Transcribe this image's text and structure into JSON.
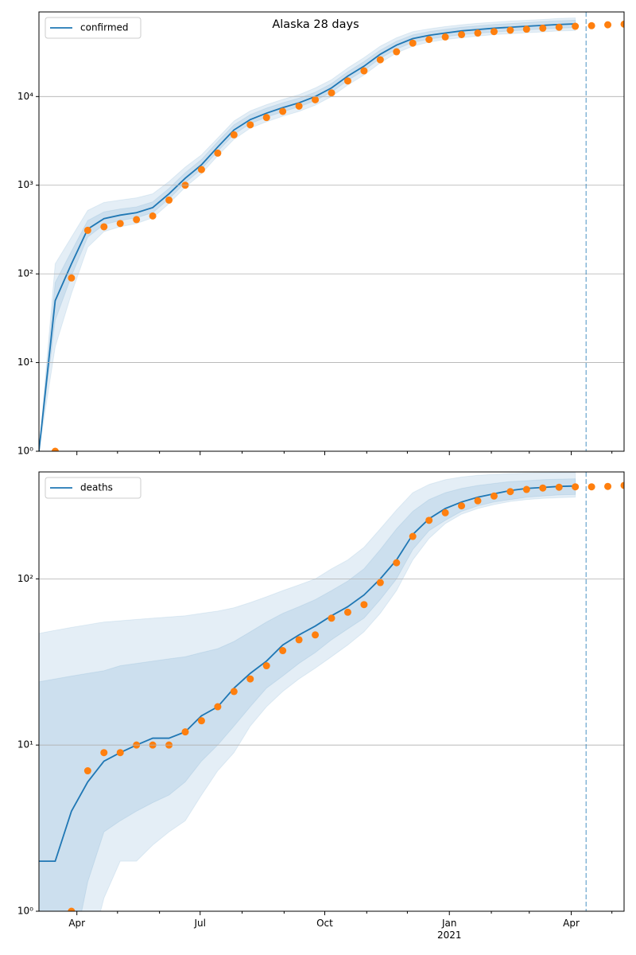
{
  "chart_data": [
    {
      "type": "line",
      "title": "Alaska 28 days",
      "x": [
        0,
        12,
        24,
        36,
        48,
        60,
        72,
        84,
        96,
        108,
        120,
        132,
        144,
        156,
        168,
        180,
        192,
        204,
        216,
        228,
        240,
        252,
        264,
        276,
        288,
        300,
        312,
        324,
        336,
        348,
        360,
        372,
        384,
        396,
        408,
        420,
        432
      ],
      "xlim": [
        0,
        432
      ],
      "xticks": [
        28,
        119,
        211,
        303,
        393
      ],
      "xminorticks": [
        58,
        89,
        150,
        181,
        242,
        272,
        334,
        362,
        423
      ],
      "ylim": [
        1,
        90000
      ],
      "log_y": true,
      "grid": "y",
      "legend": "upper left",
      "yticks": [
        {
          "value": 1,
          "label": "10⁰"
        },
        {
          "value": 10,
          "label": "10¹"
        },
        {
          "value": 100,
          "label": "10²"
        },
        {
          "value": 1000,
          "label": "10³"
        },
        {
          "value": 10000,
          "label": "10⁴"
        }
      ],
      "band_color": "#1f77b4",
      "bands": [
        {
          "lower": [
            1,
            15,
            60,
            200,
            300,
            340,
            370,
            430,
            620,
            950,
            1350,
            2150,
            3300,
            4400,
            5200,
            6000,
            6800,
            8000,
            10000,
            13500,
            17500,
            24000,
            31000,
            37000,
            41000,
            44000,
            46000,
            48000,
            50000,
            51000,
            52500,
            53500,
            55000,
            55500,
            null,
            null,
            null
          ],
          "upper": [
            1,
            130,
            260,
            520,
            640,
            680,
            720,
            800,
            1100,
            1600,
            2200,
            3400,
            5300,
            6900,
            8100,
            9300,
            10500,
            12500,
            15500,
            21000,
            27500,
            37000,
            46000,
            54000,
            58000,
            61500,
            64500,
            67000,
            69000,
            71000,
            72500,
            74000,
            76000,
            77000,
            null,
            null,
            null
          ]
        },
        {
          "lower": [
            1,
            30,
            95,
            260,
            360,
            400,
            430,
            490,
            700,
            1070,
            1520,
            2420,
            3750,
            4950,
            5850,
            6750,
            7650,
            9000,
            11200,
            15200,
            19700,
            27000,
            34300,
            40800,
            44500,
            47300,
            50000,
            51800,
            53600,
            55000,
            56400,
            57800,
            59100,
            60000,
            null,
            null,
            null
          ],
          "upper": [
            1,
            80,
            180,
            400,
            500,
            540,
            570,
            650,
            920,
            1380,
            1950,
            3100,
            4800,
            6250,
            7400,
            8500,
            9600,
            11200,
            14000,
            19000,
            24800,
            33300,
            42000,
            49600,
            54000,
            57300,
            60500,
            62700,
            65000,
            66500,
            68300,
            70000,
            71500,
            72600,
            null,
            null,
            null
          ]
        }
      ],
      "series": [
        {
          "name": "confirmed",
          "color": "#1f77b4",
          "values": [
            1,
            50,
            130,
            320,
            420,
            460,
            490,
            560,
            800,
            1200,
            1700,
            2700,
            4200,
            5500,
            6500,
            7500,
            8500,
            10000,
            12500,
            17000,
            22000,
            30000,
            38000,
            45000,
            49000,
            52000,
            55000,
            57000,
            59000,
            60500,
            62000,
            63500,
            65000,
            66000,
            null,
            null,
            null
          ]
        },
        {
          "color": "#ff7f0e",
          "marker": "o",
          "values": [
            null,
            1,
            90,
            310,
            340,
            370,
            410,
            450,
            680,
            1000,
            1500,
            2300,
            3700,
            4800,
            5800,
            6800,
            7800,
            9200,
            11000,
            15000,
            19500,
            26000,
            32000,
            40000,
            44000,
            47000,
            50000,
            52000,
            54000,
            56000,
            57500,
            59000,
            60500,
            62000,
            63000,
            64500,
            65500
          ]
        }
      ],
      "vline_x": 404,
      "vline_color": "#1f77b4"
    },
    {
      "type": "line",
      "x": [
        0,
        12,
        24,
        36,
        48,
        60,
        72,
        84,
        96,
        108,
        120,
        132,
        144,
        156,
        168,
        180,
        192,
        204,
        216,
        228,
        240,
        252,
        264,
        276,
        288,
        300,
        312,
        324,
        336,
        348,
        360,
        372,
        384,
        396,
        408,
        420,
        432
      ],
      "xlim": [
        0,
        432
      ],
      "xticks": [
        {
          "value": 28,
          "label": "Apr"
        },
        {
          "value": 119,
          "label": "Jul"
        },
        {
          "value": 211,
          "label": "Oct"
        },
        {
          "value": 303,
          "label": "Jan\n2021"
        },
        {
          "value": 393,
          "label": "Apr"
        }
      ],
      "xminorticks": [
        58,
        89,
        150,
        181,
        242,
        272,
        334,
        362,
        423
      ],
      "ylim": [
        1,
        440
      ],
      "log_y": true,
      "grid": "y",
      "legend": "upper left",
      "yticks": [
        {
          "value": 1,
          "label": "10⁰"
        },
        {
          "value": 10,
          "label": "10¹"
        },
        {
          "value": 100,
          "label": "10²"
        }
      ],
      "band_color": "#1f77b4",
      "bands": [
        {
          "lower": [
            0.5,
            0.5,
            0.5,
            0.5,
            1.2,
            2,
            2,
            2.5,
            3,
            3.5,
            5,
            7,
            9,
            13,
            17,
            21,
            25,
            29,
            34,
            40,
            48,
            62,
            85,
            130,
            175,
            215,
            245,
            265,
            280,
            292,
            300,
            305,
            308,
            310,
            null,
            null,
            null
          ],
          "upper": [
            47,
            49,
            51,
            53,
            55,
            56,
            57,
            58,
            59,
            60,
            62,
            64,
            67,
            72,
            78,
            85,
            92,
            100,
            115,
            130,
            155,
            200,
            260,
            330,
            370,
            395,
            410,
            420,
            425,
            430,
            432,
            434,
            435,
            435,
            null,
            null,
            null
          ]
        },
        {
          "lower": [
            0.5,
            0.5,
            0.5,
            1.5,
            3,
            3.5,
            4,
            4.5,
            5,
            6,
            8,
            10,
            13,
            17,
            22,
            26,
            31,
            36,
            43,
            50,
            58,
            75,
            100,
            150,
            195,
            225,
            255,
            275,
            290,
            300,
            310,
            315,
            320,
            322,
            null,
            null,
            null
          ],
          "upper": [
            24,
            25,
            26,
            27,
            28,
            30,
            31,
            32,
            33,
            34,
            36,
            38,
            42,
            48,
            55,
            62,
            68,
            75,
            85,
            97,
            115,
            150,
            200,
            255,
            300,
            330,
            350,
            365,
            375,
            385,
            390,
            395,
            398,
            400,
            null,
            null,
            null
          ]
        }
      ],
      "series": [
        {
          "name": "deaths",
          "color": "#1f77b4",
          "values": [
            2,
            2,
            4,
            6,
            8,
            9,
            10,
            11,
            11,
            12,
            15,
            17,
            22,
            27,
            32,
            40,
            46,
            52,
            60,
            68,
            80,
            100,
            130,
            185,
            230,
            265,
            290,
            310,
            325,
            340,
            350,
            355,
            360,
            362,
            null,
            null,
            null
          ]
        },
        {
          "color": "#ff7f0e",
          "marker": "o",
          "values": [
            null,
            null,
            1,
            7,
            9,
            9,
            10,
            10,
            10,
            12,
            14,
            17,
            21,
            25,
            30,
            37,
            43,
            46,
            58,
            63,
            70,
            95,
            125,
            180,
            225,
            250,
            275,
            295,
            315,
            335,
            345,
            352,
            356,
            358,
            358,
            360,
            365
          ]
        }
      ],
      "vline_x": 404,
      "vline_color": "#1f77b4"
    }
  ]
}
